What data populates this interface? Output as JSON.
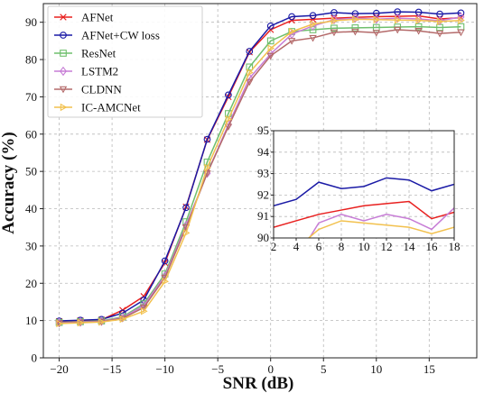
{
  "chart_data": {
    "type": "line",
    "xlabel": "SNR (dB)",
    "ylabel": "Accuracy (%)",
    "xlim": [
      -21.5,
      19.5
    ],
    "ylim": [
      0,
      95
    ],
    "xticks": [
      -20,
      -15,
      -10,
      -5,
      0,
      5,
      10,
      15
    ],
    "yticks": [
      0,
      10,
      20,
      30,
      40,
      50,
      60,
      70,
      80,
      90
    ],
    "grid": true,
    "legend_position": "top-left",
    "x": [
      -20,
      -18,
      -16,
      -14,
      -12,
      -10,
      -8,
      -6,
      -4,
      -2,
      0,
      2,
      4,
      6,
      8,
      10,
      12,
      14,
      16,
      18
    ],
    "series": [
      {
        "name": "AFNet",
        "color": "#e8201f",
        "marker": "x",
        "values": [
          9.8,
          10.0,
          10.2,
          12.8,
          16.5,
          25.5,
          40.5,
          58.5,
          70.0,
          82.0,
          88.0,
          90.5,
          90.8,
          91.1,
          91.3,
          91.5,
          91.6,
          91.7,
          90.9,
          91.2
        ]
      },
      {
        "name": "AFNet+CW loss",
        "color": "#1a1aa6",
        "marker": "o",
        "values": [
          9.9,
          10.1,
          10.3,
          12.0,
          15.5,
          26.0,
          40.3,
          58.6,
          70.5,
          82.2,
          89.0,
          91.5,
          91.8,
          92.6,
          92.3,
          92.4,
          92.8,
          92.7,
          92.2,
          92.5
        ]
      },
      {
        "name": "ResNet",
        "color": "#6fbf6d",
        "marker": "s",
        "values": [
          9.5,
          9.7,
          9.9,
          11.0,
          14.5,
          22.5,
          36.5,
          52.5,
          65.5,
          78.0,
          85.0,
          87.5,
          88.0,
          88.4,
          88.5,
          88.6,
          88.7,
          88.8,
          88.6,
          88.8
        ]
      },
      {
        "name": "LSTM2",
        "color": "#c77dd6",
        "marker": "d",
        "values": [
          9.4,
          9.6,
          9.8,
          10.8,
          14.0,
          22.0,
          35.5,
          49.5,
          62.5,
          75.0,
          81.5,
          86.8,
          89.0,
          90.7,
          91.1,
          90.8,
          91.1,
          90.9,
          90.4,
          91.4
        ]
      },
      {
        "name": "CLDNN",
        "color": "#b46a6a",
        "marker": "v",
        "values": [
          9.3,
          9.5,
          9.7,
          10.6,
          13.5,
          21.5,
          35.0,
          49.5,
          62.0,
          74.0,
          81.0,
          85.0,
          85.8,
          87.3,
          87.5,
          87.2,
          88.0,
          87.7,
          87.0,
          87.3
        ]
      },
      {
        "name": "IC-AMCNet",
        "color": "#f2c14e",
        "marker": ">",
        "values": [
          9.2,
          9.4,
          9.6,
          10.4,
          12.5,
          20.5,
          33.5,
          51.0,
          64.0,
          76.5,
          83.0,
          87.5,
          89.5,
          90.4,
          90.8,
          90.7,
          90.6,
          90.5,
          90.2,
          90.5
        ]
      }
    ],
    "inset": {
      "xlim": [
        2,
        18
      ],
      "ylim": [
        90,
        95
      ],
      "xticks": [
        2,
        4,
        6,
        8,
        10,
        12,
        14,
        16,
        18
      ],
      "yticks": [
        90,
        91,
        92,
        93,
        94,
        95
      ]
    }
  }
}
